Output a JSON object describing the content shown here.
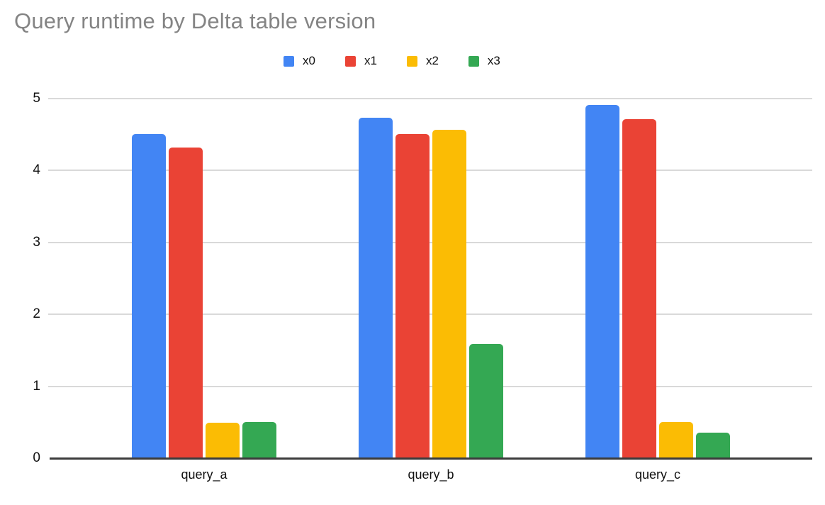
{
  "chart_data": {
    "type": "bar",
    "title": "Query runtime by Delta table version",
    "categories": [
      "query_a",
      "query_b",
      "query_c"
    ],
    "series": [
      {
        "name": "x0",
        "color": "#4285F4",
        "values": [
          4.5,
          4.72,
          4.9
        ]
      },
      {
        "name": "x1",
        "color": "#EA4335",
        "values": [
          4.31,
          4.5,
          4.7
        ]
      },
      {
        "name": "x2",
        "color": "#FBBC04",
        "values": [
          0.48,
          4.56,
          0.49
        ]
      },
      {
        "name": "x3",
        "color": "#34A853",
        "values": [
          0.49,
          1.58,
          0.35
        ]
      }
    ],
    "xlabel": "",
    "ylabel": "",
    "ylim": [
      0,
      5
    ],
    "yticks": [
      0,
      1,
      2,
      3,
      4,
      5
    ],
    "grid": true,
    "legend_position": "top-center"
  },
  "style_colors": {
    "title_text": "#848484",
    "axis_line": "#3c3c3c",
    "gridline": "#d9d9d9",
    "label_text": "#111111",
    "background": "#ffffff"
  }
}
